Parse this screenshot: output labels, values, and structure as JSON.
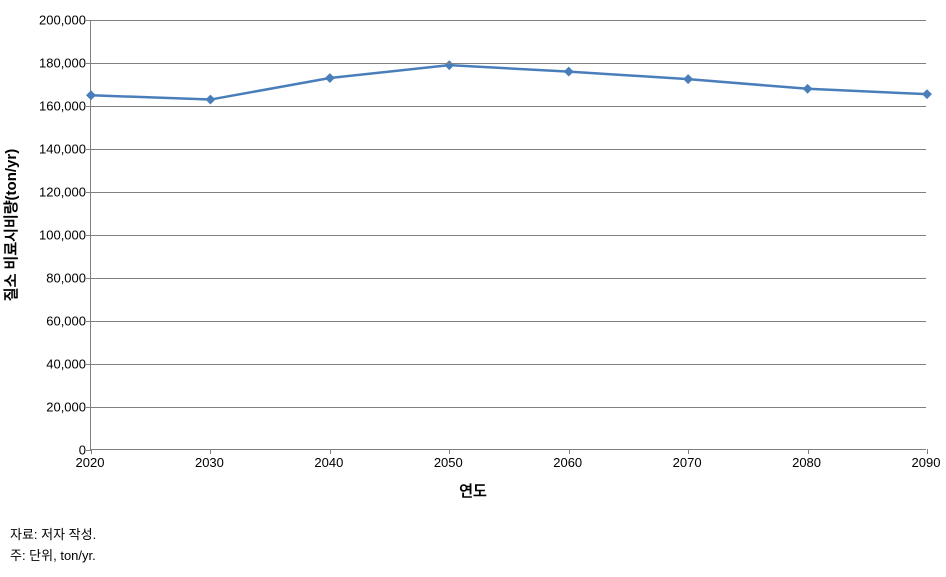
{
  "chart": {
    "type": "line",
    "y_axis_title": "질소 비료시비량(ton/yr)",
    "x_axis_title": "연도",
    "x_categories": [
      "2020",
      "2030",
      "2040",
      "2050",
      "2060",
      "2070",
      "2080",
      "2090"
    ],
    "y_ticks": [
      "0",
      "20,000",
      "40,000",
      "60,000",
      "80,000",
      "100,000",
      "120,000",
      "140,000",
      "160,000",
      "180,000",
      "200,000"
    ],
    "y_values_numeric": [
      0,
      20000,
      40000,
      60000,
      80000,
      100000,
      120000,
      140000,
      160000,
      180000,
      200000
    ],
    "ylim": [
      0,
      200000
    ],
    "ytick_step": 20000,
    "series": {
      "values": [
        165000,
        163000,
        173000,
        179000,
        176000,
        172500,
        168000,
        165500
      ],
      "line_color": "#4a7ebb",
      "line_width": 2.5,
      "marker_shape": "diamond",
      "marker_size": 7,
      "marker_color": "#4a7ebb"
    },
    "grid_color": "#808080",
    "background_color": "#ffffff",
    "tick_label_fontsize": 13,
    "axis_title_fontsize": 15,
    "axis_title_fontweight": "bold"
  },
  "footer": {
    "source_line": "자료: 저자 작성.",
    "note_line": "주: 단위, ton/yr."
  }
}
